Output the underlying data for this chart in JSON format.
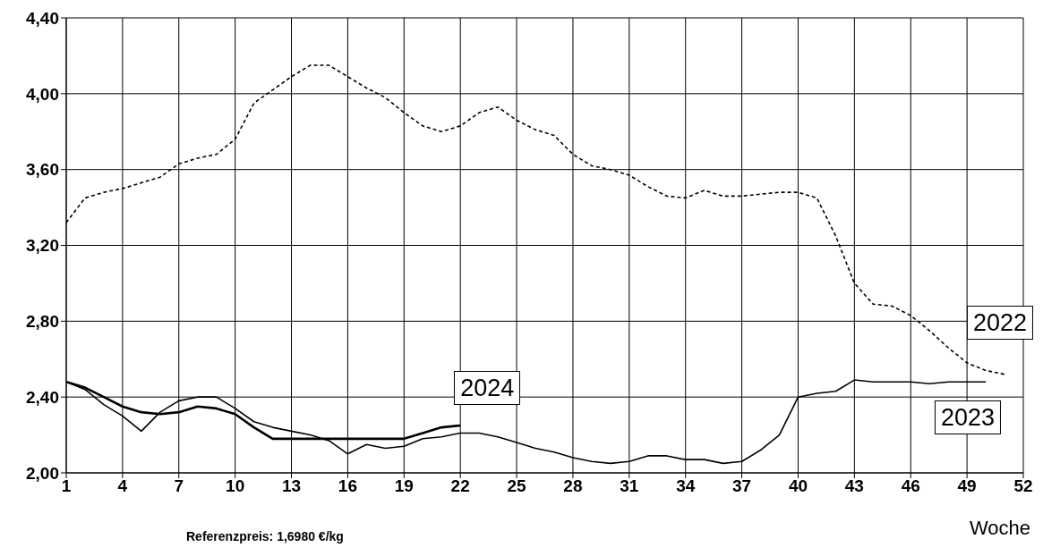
{
  "chart_data": {
    "type": "line",
    "xlabel": "Woche",
    "annotations": [
      "Referenzpreis: 1,6980 €/kg"
    ],
    "xlim": [
      1,
      52
    ],
    "xticks": [
      1,
      4,
      7,
      10,
      13,
      16,
      19,
      22,
      25,
      28,
      31,
      34,
      37,
      40,
      43,
      46,
      49,
      52
    ],
    "ylim": [
      2.0,
      4.4
    ],
    "yticks": [
      {
        "value": 2.0,
        "label": "2,00"
      },
      {
        "value": 2.4,
        "label": "2,40"
      },
      {
        "value": 2.8,
        "label": "2,80"
      },
      {
        "value": 3.2,
        "label": "3,20"
      },
      {
        "value": 3.6,
        "label": "3,60"
      },
      {
        "value": 4.0,
        "label": "4,00"
      },
      {
        "value": 4.4,
        "label": "4,40"
      }
    ],
    "grid": true,
    "marker": "none",
    "series": [
      {
        "name": "2022",
        "color": "#000000",
        "line_style": "dotted",
        "x": [
          1,
          2,
          3,
          4,
          5,
          6,
          7,
          8,
          9,
          10,
          11,
          12,
          13,
          14,
          15,
          16,
          17,
          18,
          19,
          20,
          21,
          22,
          23,
          24,
          25,
          26,
          27,
          28,
          29,
          30,
          31,
          32,
          33,
          34,
          35,
          36,
          37,
          38,
          39,
          40,
          41,
          42,
          43,
          44,
          45,
          46,
          47,
          48,
          49,
          50,
          51
        ],
        "values": [
          3.32,
          3.45,
          3.48,
          3.5,
          3.53,
          3.56,
          3.63,
          3.66,
          3.68,
          3.76,
          3.95,
          4.02,
          4.09,
          4.15,
          4.15,
          4.09,
          4.03,
          3.98,
          3.9,
          3.83,
          3.8,
          3.83,
          3.9,
          3.93,
          3.86,
          3.81,
          3.78,
          3.68,
          3.62,
          3.6,
          3.57,
          3.51,
          3.46,
          3.45,
          3.49,
          3.46,
          3.46,
          3.47,
          3.48,
          3.48,
          3.45,
          3.25,
          3.0,
          2.89,
          2.88,
          2.83,
          2.75,
          2.66,
          2.58,
          2.54,
          2.52
        ]
      },
      {
        "name": "2023",
        "color": "#000000",
        "line_style": "solid",
        "x": [
          1,
          2,
          3,
          4,
          5,
          6,
          7,
          8,
          9,
          10,
          11,
          12,
          13,
          14,
          15,
          16,
          17,
          18,
          19,
          20,
          21,
          22,
          23,
          24,
          25,
          26,
          27,
          28,
          29,
          30,
          31,
          32,
          33,
          34,
          35,
          36,
          37,
          38,
          39,
          40,
          41,
          42,
          43,
          44,
          45,
          46,
          47,
          48,
          49,
          50
        ],
        "values": [
          2.48,
          2.44,
          2.36,
          2.3,
          2.22,
          2.32,
          2.38,
          2.4,
          2.4,
          2.34,
          2.27,
          2.24,
          2.22,
          2.2,
          2.17,
          2.1,
          2.15,
          2.13,
          2.14,
          2.18,
          2.19,
          2.21,
          2.21,
          2.19,
          2.16,
          2.13,
          2.11,
          2.08,
          2.06,
          2.05,
          2.06,
          2.09,
          2.09,
          2.07,
          2.07,
          2.05,
          2.06,
          2.12,
          2.2,
          2.4,
          2.42,
          2.43,
          2.49,
          2.48,
          2.48,
          2.48,
          2.47,
          2.48,
          2.48,
          2.48
        ]
      },
      {
        "name": "2024",
        "color": "#000000",
        "line_style": "solid",
        "x": [
          1,
          2,
          3,
          4,
          5,
          6,
          7,
          8,
          9,
          10,
          11,
          12,
          13,
          14,
          15,
          16,
          17,
          18,
          19,
          20,
          21,
          22
        ],
        "values": [
          2.48,
          2.45,
          2.4,
          2.35,
          2.32,
          2.31,
          2.32,
          2.35,
          2.34,
          2.31,
          2.24,
          2.18,
          2.18,
          2.18,
          2.18,
          2.18,
          2.18,
          2.18,
          2.18,
          2.21,
          2.24,
          2.25
        ]
      }
    ]
  }
}
